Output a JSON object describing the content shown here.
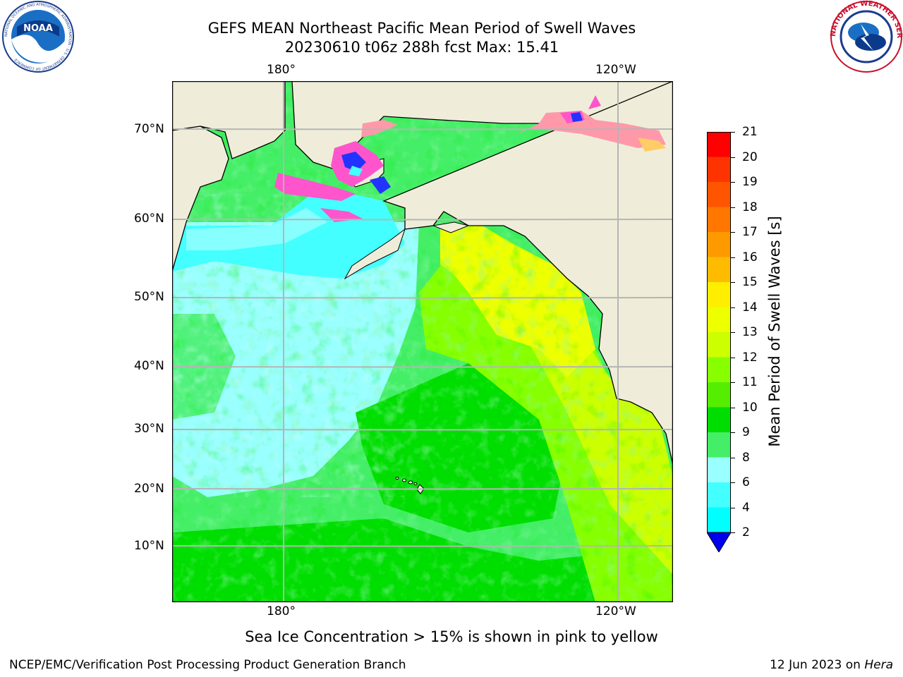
{
  "header": {
    "title_line1": "GEFS MEAN Northeast Pacific Mean Period of Swell Waves",
    "title_line2": "20230610 t06z 288h fcst   Max: 15.41"
  },
  "map": {
    "lon_labels_top": [
      "180°",
      "120°W"
    ],
    "lon_labels_bottom": [
      "180°",
      "120°W"
    ],
    "lat_labels": [
      "70°N",
      "60°N",
      "50°N",
      "40°N",
      "30°N",
      "20°N",
      "10°N"
    ],
    "grid": true,
    "land_color": "#efedd9",
    "ocean_field": "mean swell period (s), ~7 in northwest to ~15 along North American coast",
    "sea_ice_colors": [
      "#ff55cc",
      "#ff99aa",
      "#2233ff",
      "#ffcc66"
    ]
  },
  "colorbar": {
    "title": "Mean Period of Swell Waves [s]",
    "tick_labels": [
      "21",
      "20",
      "19",
      "18",
      "17",
      "16",
      "15",
      "14",
      "13",
      "12",
      "11",
      "10",
      "9",
      "8",
      "6",
      "4",
      "2"
    ],
    "colors_top_to_bottom": [
      "#ff0000",
      "#ff3300",
      "#ff5500",
      "#ff7700",
      "#ff9900",
      "#ffbb00",
      "#ffee00",
      "#eeff00",
      "#ccff00",
      "#88ff00",
      "#55ee00",
      "#00dd00",
      "#44ee66",
      "#99ffff",
      "#44ffff",
      "#00ffff",
      "#00ccff",
      "#0077ff"
    ],
    "under_color": "#0000ee"
  },
  "footer": {
    "note": "Sea Ice Concentration > 15% is shown in pink to yellow",
    "left": "NCEP/EMC/Verification Post Processing Product Generation Branch",
    "right_date": "12 Jun 2023 on ",
    "right_machine": "Hera"
  },
  "logos": {
    "left": "noaa-logo",
    "right": "national-weather-service-logo",
    "noaa_text": "NOAA",
    "noaa_ring": "NATIONAL OCEANIC AND ATMOSPHERIC ADMINISTRATION · U.S. DEPARTMENT OF COMMERCE",
    "nws_ring": "NATIONAL WEATHER SERVICE"
  }
}
